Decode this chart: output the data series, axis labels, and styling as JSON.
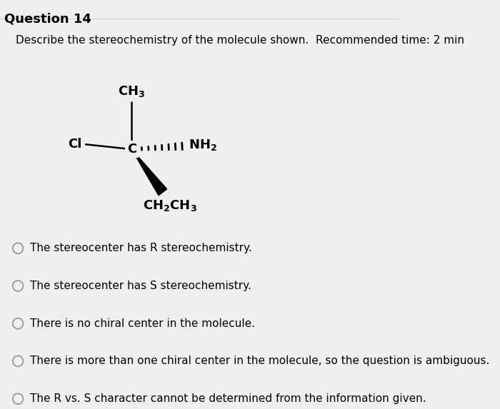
{
  "title": "Question 14",
  "question_text": "Describe the stereochemistry of the molecule shown.  Recommended time: 2 min",
  "bg_color": "#efefef",
  "text_color": "#000000",
  "options": [
    "The stereocenter has R stereochemistry.",
    "The stereocenter has S stereochemistry.",
    "There is no chiral center in the molecule.",
    "There is more than one chiral center in the molecule, so the question is ambiguous.",
    "The R vs. S character cannot be determined from the information given."
  ],
  "font_size_title": 13,
  "font_size_question": 11,
  "font_size_options": 11,
  "font_size_molecule": 13,
  "line_color": "#cccccc",
  "radio_color": "#999999"
}
